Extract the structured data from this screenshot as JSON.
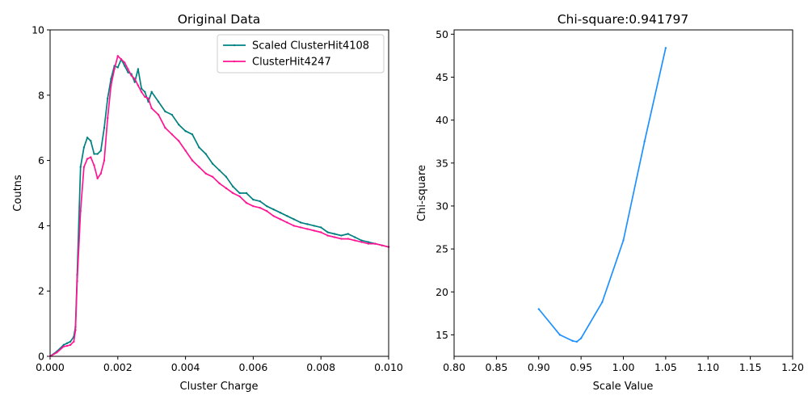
{
  "chart_data": [
    {
      "type": "line",
      "title": "Original Data",
      "xlabel": "Cluster Charge",
      "ylabel": "Coutns",
      "xlim": [
        0.0,
        0.01
      ],
      "ylim": [
        0,
        10
      ],
      "x_ticks": [
        0.0,
        0.002,
        0.004,
        0.006,
        0.008,
        0.01
      ],
      "x_tick_labels": [
        "0.000",
        "0.002",
        "0.004",
        "0.006",
        "0.008",
        "0.010"
      ],
      "y_ticks": [
        0,
        2,
        4,
        6,
        8,
        10
      ],
      "y_tick_labels": [
        "0",
        "2",
        "4",
        "6",
        "8",
        "10"
      ],
      "grid": false,
      "legend_position": "top-right",
      "series": [
        {
          "name": "Scaled ClusterHit4108",
          "color": "#008080",
          "x": [
            0.0,
            0.0002,
            0.0004,
            0.0005,
            0.0006,
            0.0007,
            0.00075,
            0.0008,
            0.0009,
            0.001,
            0.0011,
            0.0012,
            0.0013,
            0.0014,
            0.0015,
            0.0016,
            0.0017,
            0.0018,
            0.0019,
            0.002,
            0.0021,
            0.0022,
            0.0023,
            0.0024,
            0.0025,
            0.0026,
            0.0027,
            0.0028,
            0.0029,
            0.003,
            0.0032,
            0.0034,
            0.0036,
            0.0038,
            0.004,
            0.0042,
            0.0044,
            0.0046,
            0.0048,
            0.005,
            0.0052,
            0.0054,
            0.0056,
            0.0058,
            0.006,
            0.0062,
            0.0064,
            0.0066,
            0.0068,
            0.007,
            0.0072,
            0.0074,
            0.0076,
            0.0078,
            0.008,
            0.0082,
            0.0084,
            0.0086,
            0.0088,
            0.009,
            0.0092,
            0.0094,
            0.0096,
            0.0098,
            0.01
          ],
          "values": [
            0.0,
            0.15,
            0.35,
            0.4,
            0.45,
            0.6,
            0.9,
            2.5,
            5.8,
            6.4,
            6.7,
            6.6,
            6.2,
            6.2,
            6.3,
            7.0,
            7.9,
            8.5,
            8.9,
            8.85,
            9.1,
            8.9,
            8.7,
            8.65,
            8.4,
            8.8,
            8.2,
            8.1,
            7.8,
            8.1,
            7.8,
            7.5,
            7.4,
            7.1,
            6.9,
            6.8,
            6.4,
            6.2,
            5.9,
            5.7,
            5.5,
            5.2,
            5.0,
            5.0,
            4.8,
            4.75,
            4.6,
            4.5,
            4.4,
            4.3,
            4.2,
            4.1,
            4.05,
            4.0,
            3.95,
            3.8,
            3.75,
            3.7,
            3.75,
            3.65,
            3.55,
            3.5,
            3.45,
            3.4,
            3.35
          ]
        },
        {
          "name": "ClusterHit4247",
          "color": "#ff1493",
          "x": [
            0.0,
            0.0002,
            0.0004,
            0.0005,
            0.0006,
            0.0007,
            0.00075,
            0.0008,
            0.0009,
            0.001,
            0.0011,
            0.0012,
            0.0013,
            0.0014,
            0.0015,
            0.0016,
            0.0017,
            0.0018,
            0.0019,
            0.002,
            0.0021,
            0.0022,
            0.0023,
            0.0024,
            0.0025,
            0.0026,
            0.0027,
            0.0028,
            0.0029,
            0.003,
            0.0032,
            0.0034,
            0.0036,
            0.0038,
            0.004,
            0.0042,
            0.0044,
            0.0046,
            0.0048,
            0.005,
            0.0052,
            0.0054,
            0.0056,
            0.0058,
            0.006,
            0.0062,
            0.0064,
            0.0066,
            0.0068,
            0.007,
            0.0072,
            0.0074,
            0.0076,
            0.0078,
            0.008,
            0.0082,
            0.0084,
            0.0086,
            0.0088,
            0.009,
            0.0092,
            0.0094,
            0.0096,
            0.0098,
            0.01
          ],
          "values": [
            0.0,
            0.12,
            0.3,
            0.32,
            0.35,
            0.45,
            0.8,
            2.3,
            4.45,
            5.8,
            6.05,
            6.1,
            5.85,
            5.45,
            5.6,
            6.0,
            7.3,
            8.3,
            8.8,
            9.2,
            9.1,
            9.0,
            8.8,
            8.6,
            8.5,
            8.3,
            8.1,
            7.95,
            7.9,
            7.6,
            7.4,
            7.0,
            6.8,
            6.6,
            6.3,
            6.0,
            5.8,
            5.6,
            5.5,
            5.3,
            5.15,
            5.0,
            4.9,
            4.7,
            4.6,
            4.55,
            4.45,
            4.3,
            4.2,
            4.1,
            4.0,
            3.95,
            3.9,
            3.85,
            3.8,
            3.7,
            3.65,
            3.6,
            3.6,
            3.55,
            3.5,
            3.45,
            3.45,
            3.4,
            3.35
          ]
        }
      ]
    },
    {
      "type": "line",
      "title": "Chi-square:0.941797",
      "xlabel": "Scale Value",
      "ylabel": "Chi-square",
      "xlim": [
        0.8,
        1.2
      ],
      "ylim": [
        12.5,
        50.5
      ],
      "x_ticks": [
        0.8,
        0.85,
        0.9,
        0.95,
        1.0,
        1.05,
        1.1,
        1.15,
        1.2
      ],
      "x_tick_labels": [
        "0.80",
        "0.85",
        "0.90",
        "0.95",
        "1.00",
        "1.05",
        "1.10",
        "1.15",
        "1.20"
      ],
      "y_ticks": [
        15,
        20,
        25,
        30,
        35,
        40,
        45,
        50
      ],
      "y_tick_labels": [
        "15",
        "20",
        "25",
        "30",
        "35",
        "40",
        "45",
        "50"
      ],
      "grid": false,
      "series": [
        {
          "color": "#1e90ff",
          "x": [
            0.9,
            0.925,
            0.94,
            0.945,
            0.95,
            0.975,
            1.0,
            1.025,
            1.05
          ],
          "values": [
            18.0,
            15.0,
            14.3,
            14.2,
            14.6,
            18.8,
            26.0,
            37.5,
            48.4
          ]
        }
      ]
    }
  ]
}
